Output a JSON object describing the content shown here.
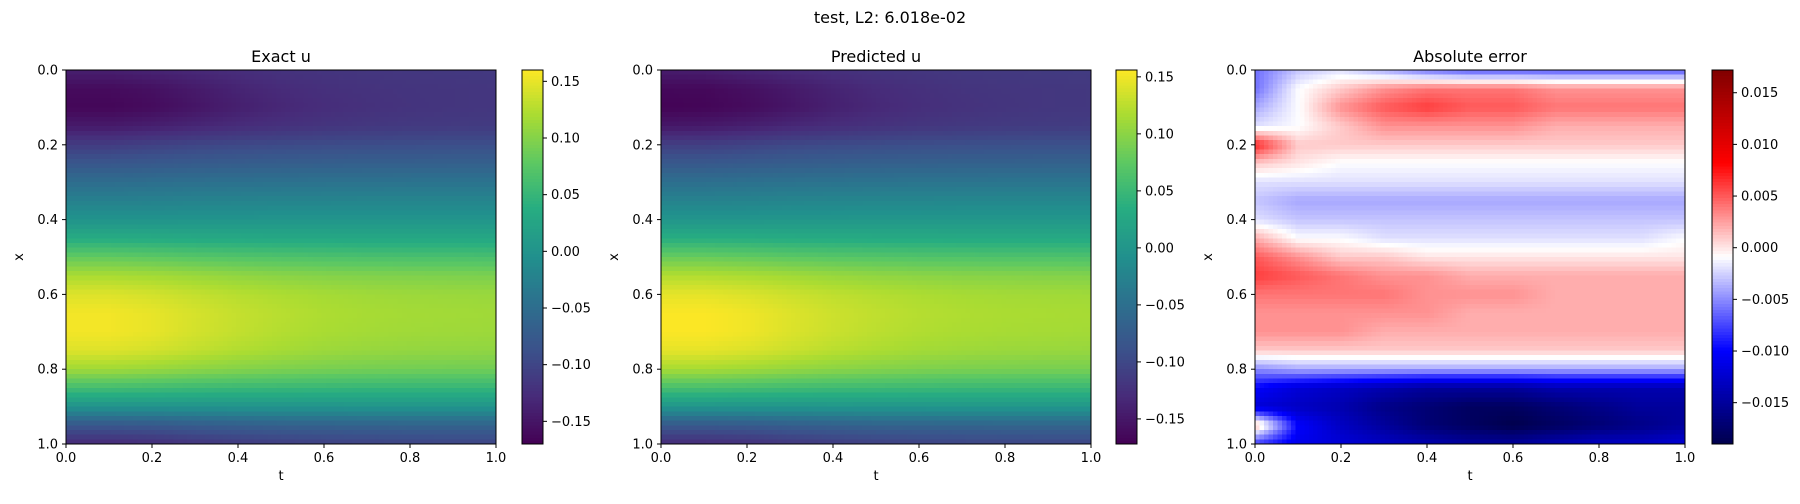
{
  "figure": {
    "suptitle": "test, L2: 6.018e-02"
  },
  "chart_data": [
    {
      "type": "heatmap",
      "title": "Exact u",
      "xlabel": "t",
      "ylabel": "x",
      "xlim": [
        0,
        1
      ],
      "ylim": [
        1,
        0
      ],
      "xticks": [
        "0.0",
        "0.2",
        "0.4",
        "0.6",
        "0.8",
        "1.0"
      ],
      "yticks": [
        "0.0",
        "0.2",
        "0.4",
        "0.6",
        "0.8",
        "1.0"
      ],
      "colormap": "viridis",
      "colorbar": {
        "range": [
          -0.17,
          0.16
        ],
        "ticks": [
          {
            "value": 0.15,
            "label": "0.15"
          },
          {
            "value": 0.1,
            "label": "0.10"
          },
          {
            "value": 0.05,
            "label": "0.05"
          },
          {
            "value": 0.0,
            "label": "0.00"
          },
          {
            "value": -0.05,
            "label": "−0.05"
          },
          {
            "value": -0.1,
            "label": "−0.10"
          },
          {
            "value": -0.15,
            "label": "−0.15"
          }
        ]
      },
      "x_values": [
        0.0,
        0.1,
        0.2,
        0.3,
        0.4,
        0.5,
        0.6,
        0.7,
        0.8,
        0.9,
        1.0
      ],
      "y_values": [
        0.0,
        0.05,
        0.1,
        0.15,
        0.2,
        0.25,
        0.3,
        0.35,
        0.4,
        0.45,
        0.5,
        0.55,
        0.6,
        0.65,
        0.7,
        0.75,
        0.8,
        0.85,
        0.9,
        0.95,
        1.0
      ],
      "z": [
        [
          -0.14,
          -0.14,
          -0.135,
          -0.13,
          -0.125,
          -0.12,
          -0.118,
          -0.116,
          -0.115,
          -0.114,
          -0.113
        ],
        [
          -0.16,
          -0.16,
          -0.155,
          -0.145,
          -0.135,
          -0.128,
          -0.123,
          -0.12,
          -0.118,
          -0.117,
          -0.116
        ],
        [
          -0.165,
          -0.165,
          -0.16,
          -0.15,
          -0.14,
          -0.132,
          -0.126,
          -0.122,
          -0.119,
          -0.117,
          -0.116
        ],
        [
          -0.145,
          -0.145,
          -0.14,
          -0.133,
          -0.127,
          -0.122,
          -0.118,
          -0.115,
          -0.113,
          -0.112,
          -0.111
        ],
        [
          -0.11,
          -0.11,
          -0.105,
          -0.1,
          -0.097,
          -0.095,
          -0.093,
          -0.092,
          -0.091,
          -0.09,
          -0.09
        ],
        [
          -0.08,
          -0.08,
          -0.077,
          -0.074,
          -0.072,
          -0.07,
          -0.069,
          -0.068,
          -0.068,
          -0.067,
          -0.067
        ],
        [
          -0.05,
          -0.05,
          -0.048,
          -0.046,
          -0.045,
          -0.044,
          -0.043,
          -0.043,
          -0.042,
          -0.042,
          -0.042
        ],
        [
          -0.025,
          -0.025,
          -0.024,
          -0.022,
          -0.021,
          -0.02,
          -0.02,
          -0.019,
          -0.019,
          -0.019,
          -0.019
        ],
        [
          0.0,
          0.0,
          0.0,
          0.001,
          0.001,
          0.002,
          0.002,
          0.002,
          0.002,
          0.002,
          0.002
        ],
        [
          0.035,
          0.035,
          0.034,
          0.032,
          0.031,
          0.03,
          0.03,
          0.029,
          0.029,
          0.029,
          0.029
        ],
        [
          0.08,
          0.08,
          0.077,
          0.073,
          0.07,
          0.068,
          0.066,
          0.065,
          0.064,
          0.064,
          0.063
        ],
        [
          0.12,
          0.12,
          0.117,
          0.112,
          0.107,
          0.103,
          0.1,
          0.098,
          0.097,
          0.096,
          0.095
        ],
        [
          0.145,
          0.145,
          0.14,
          0.133,
          0.127,
          0.122,
          0.118,
          0.115,
          0.113,
          0.112,
          0.111
        ],
        [
          0.155,
          0.155,
          0.15,
          0.141,
          0.133,
          0.127,
          0.122,
          0.119,
          0.117,
          0.116,
          0.115
        ],
        [
          0.155,
          0.155,
          0.15,
          0.14,
          0.132,
          0.125,
          0.12,
          0.117,
          0.115,
          0.114,
          0.113
        ],
        [
          0.145,
          0.145,
          0.14,
          0.132,
          0.124,
          0.118,
          0.113,
          0.11,
          0.108,
          0.107,
          0.106
        ],
        [
          0.115,
          0.115,
          0.111,
          0.105,
          0.1,
          0.096,
          0.093,
          0.091,
          0.09,
          0.089,
          0.089
        ],
        [
          0.06,
          0.06,
          0.058,
          0.055,
          0.053,
          0.052,
          0.051,
          0.05,
          0.05,
          0.05,
          0.05
        ],
        [
          0.0,
          0.0,
          0.0,
          0.0,
          0.001,
          0.001,
          0.001,
          0.002,
          0.002,
          0.002,
          0.002
        ],
        [
          -0.08,
          -0.08,
          -0.078,
          -0.073,
          -0.07,
          -0.067,
          -0.066,
          -0.065,
          -0.064,
          -0.064,
          -0.064
        ],
        [
          -0.13,
          -0.13,
          -0.126,
          -0.119,
          -0.113,
          -0.109,
          -0.106,
          -0.104,
          -0.103,
          -0.102,
          -0.102
        ]
      ]
    },
    {
      "type": "heatmap",
      "title": "Predicted u",
      "xlabel": "t",
      "ylabel": "x",
      "xlim": [
        0,
        1
      ],
      "ylim": [
        1,
        0
      ],
      "xticks": [
        "0.0",
        "0.2",
        "0.4",
        "0.6",
        "0.8",
        "1.0"
      ],
      "yticks": [
        "0.0",
        "0.2",
        "0.4",
        "0.6",
        "0.8",
        "1.0"
      ],
      "colormap": "viridis",
      "colorbar": {
        "range": [
          -0.172,
          0.156
        ],
        "ticks": [
          {
            "value": 0.15,
            "label": "0.15"
          },
          {
            "value": 0.1,
            "label": "0.10"
          },
          {
            "value": 0.05,
            "label": "0.05"
          },
          {
            "value": 0.0,
            "label": "0.00"
          },
          {
            "value": -0.05,
            "label": "−0.05"
          },
          {
            "value": -0.1,
            "label": "−0.10"
          },
          {
            "value": -0.15,
            "label": "−0.15"
          }
        ]
      },
      "x_values": [
        0.0,
        0.1,
        0.2,
        0.3,
        0.4,
        0.5,
        0.6,
        0.7,
        0.8,
        0.9,
        1.0
      ],
      "y_values": [
        0.0,
        0.05,
        0.1,
        0.15,
        0.2,
        0.25,
        0.3,
        0.35,
        0.4,
        0.45,
        0.5,
        0.55,
        0.6,
        0.65,
        0.7,
        0.75,
        0.8,
        0.85,
        0.9,
        0.95,
        1.0
      ],
      "z": [
        [
          -0.145,
          -0.143,
          -0.136,
          -0.13,
          -0.125,
          -0.12,
          -0.118,
          -0.116,
          -0.115,
          -0.114,
          -0.113
        ],
        [
          -0.165,
          -0.165,
          -0.158,
          -0.148,
          -0.138,
          -0.13,
          -0.125,
          -0.121,
          -0.119,
          -0.118,
          -0.117
        ],
        [
          -0.17,
          -0.168,
          -0.162,
          -0.152,
          -0.141,
          -0.133,
          -0.127,
          -0.123,
          -0.12,
          -0.118,
          -0.117
        ],
        [
          -0.15,
          -0.148,
          -0.142,
          -0.134,
          -0.128,
          -0.123,
          -0.119,
          -0.116,
          -0.114,
          -0.113,
          -0.112
        ],
        [
          -0.11,
          -0.11,
          -0.105,
          -0.1,
          -0.097,
          -0.095,
          -0.093,
          -0.092,
          -0.091,
          -0.09,
          -0.09
        ],
        [
          -0.08,
          -0.08,
          -0.077,
          -0.074,
          -0.072,
          -0.07,
          -0.069,
          -0.068,
          -0.068,
          -0.067,
          -0.067
        ],
        [
          -0.05,
          -0.05,
          -0.048,
          -0.046,
          -0.045,
          -0.044,
          -0.043,
          -0.043,
          -0.042,
          -0.042,
          -0.042
        ],
        [
          -0.025,
          -0.025,
          -0.024,
          -0.022,
          -0.021,
          -0.02,
          -0.02,
          -0.019,
          -0.019,
          -0.019,
          -0.019
        ],
        [
          0.0,
          0.0,
          0.0,
          0.001,
          0.001,
          0.002,
          0.002,
          0.002,
          0.002,
          0.002,
          0.002
        ],
        [
          0.035,
          0.035,
          0.034,
          0.032,
          0.031,
          0.03,
          0.03,
          0.029,
          0.029,
          0.029,
          0.029
        ],
        [
          0.08,
          0.08,
          0.077,
          0.073,
          0.07,
          0.068,
          0.066,
          0.065,
          0.064,
          0.064,
          0.063
        ],
        [
          0.12,
          0.12,
          0.117,
          0.112,
          0.107,
          0.103,
          0.1,
          0.098,
          0.097,
          0.096,
          0.095
        ],
        [
          0.145,
          0.145,
          0.14,
          0.133,
          0.127,
          0.122,
          0.118,
          0.115,
          0.113,
          0.112,
          0.111
        ],
        [
          0.155,
          0.155,
          0.15,
          0.141,
          0.133,
          0.127,
          0.122,
          0.119,
          0.117,
          0.116,
          0.115
        ],
        [
          0.155,
          0.155,
          0.15,
          0.14,
          0.132,
          0.125,
          0.12,
          0.117,
          0.115,
          0.114,
          0.113
        ],
        [
          0.145,
          0.145,
          0.14,
          0.132,
          0.124,
          0.118,
          0.113,
          0.11,
          0.108,
          0.107,
          0.106
        ],
        [
          0.115,
          0.115,
          0.111,
          0.105,
          0.1,
          0.096,
          0.093,
          0.091,
          0.09,
          0.089,
          0.089
        ],
        [
          0.06,
          0.06,
          0.058,
          0.055,
          0.053,
          0.052,
          0.051,
          0.05,
          0.05,
          0.05,
          0.05
        ],
        [
          0.0,
          0.0,
          0.0,
          0.0,
          0.001,
          0.001,
          0.001,
          0.002,
          0.002,
          0.002,
          0.002
        ],
        [
          -0.08,
          -0.08,
          -0.078,
          -0.073,
          -0.07,
          -0.067,
          -0.066,
          -0.065,
          -0.064,
          -0.064,
          -0.064
        ],
        [
          -0.13,
          -0.13,
          -0.126,
          -0.119,
          -0.113,
          -0.109,
          -0.106,
          -0.104,
          -0.103,
          -0.102,
          -0.102
        ]
      ]
    },
    {
      "type": "heatmap",
      "title": "Absolute error",
      "xlabel": "t",
      "ylabel": "x",
      "xlim": [
        0,
        1
      ],
      "ylim": [
        1,
        0
      ],
      "xticks": [
        "0.0",
        "0.2",
        "0.4",
        "0.6",
        "0.8",
        "1.0"
      ],
      "yticks": [
        "0.0",
        "0.2",
        "0.4",
        "0.6",
        "0.8",
        "1.0"
      ],
      "colormap": "seismic",
      "colorbar": {
        "range": [
          -0.019,
          0.0172
        ],
        "ticks": [
          {
            "value": 0.015,
            "label": "0.015"
          },
          {
            "value": 0.01,
            "label": "0.010"
          },
          {
            "value": 0.005,
            "label": "0.005"
          },
          {
            "value": 0.0,
            "label": "0.000"
          },
          {
            "value": -0.005,
            "label": "−0.005"
          },
          {
            "value": -0.01,
            "label": "−0.010"
          },
          {
            "value": -0.015,
            "label": "−0.015"
          }
        ]
      },
      "x_values": [
        0.0,
        0.1,
        0.2,
        0.3,
        0.4,
        0.5,
        0.6,
        0.7,
        0.8,
        0.9,
        1.0
      ],
      "y_values": [
        0.0,
        0.05,
        0.1,
        0.15,
        0.2,
        0.25,
        0.3,
        0.35,
        0.4,
        0.45,
        0.5,
        0.55,
        0.6,
        0.65,
        0.7,
        0.75,
        0.8,
        0.85,
        0.9,
        0.95,
        1.0
      ],
      "z": [
        [
          -0.006,
          -0.003,
          -0.002,
          -0.004,
          -0.006,
          -0.007,
          -0.007,
          -0.007,
          -0.007,
          -0.007,
          -0.007
        ],
        [
          -0.006,
          -0.001,
          0.001,
          0.003,
          0.004,
          0.004,
          0.004,
          0.003,
          0.003,
          0.003,
          0.003
        ],
        [
          -0.004,
          -0.001,
          0.003,
          0.005,
          0.006,
          0.005,
          0.005,
          0.004,
          0.004,
          0.004,
          0.004
        ],
        [
          -0.002,
          -0.001,
          0.001,
          0.003,
          0.003,
          0.003,
          0.003,
          0.002,
          0.002,
          0.002,
          0.002
        ],
        [
          0.007,
          0.001,
          0.001,
          0.001,
          0.001,
          0.001,
          0.001,
          0.001,
          0.001,
          0.001,
          0.001
        ],
        [
          0.001,
          0.0,
          -0.001,
          -0.001,
          -0.001,
          -0.001,
          -0.001,
          -0.001,
          -0.001,
          -0.001,
          -0.001
        ],
        [
          -0.002,
          -0.002,
          -0.002,
          -0.002,
          -0.002,
          -0.002,
          -0.002,
          -0.002,
          -0.002,
          -0.002,
          -0.002
        ],
        [
          -0.003,
          -0.004,
          -0.004,
          -0.004,
          -0.004,
          -0.004,
          -0.004,
          -0.004,
          -0.004,
          -0.004,
          -0.004
        ],
        [
          -0.002,
          -0.003,
          -0.003,
          -0.003,
          -0.003,
          -0.003,
          -0.003,
          -0.003,
          -0.003,
          -0.003,
          -0.003
        ],
        [
          0.002,
          -0.001,
          -0.001,
          -0.002,
          -0.002,
          -0.002,
          -0.002,
          -0.002,
          -0.002,
          -0.002,
          -0.001
        ],
        [
          0.005,
          0.003,
          0.001,
          0.001,
          0.0,
          0.0,
          0.0,
          0.0,
          0.0,
          0.0,
          0.0
        ],
        [
          0.006,
          0.005,
          0.004,
          0.003,
          0.003,
          0.002,
          0.002,
          0.002,
          0.002,
          0.002,
          0.002
        ],
        [
          0.004,
          0.004,
          0.004,
          0.004,
          0.003,
          0.003,
          0.003,
          0.002,
          0.002,
          0.002,
          0.002
        ],
        [
          0.003,
          0.003,
          0.003,
          0.003,
          0.003,
          0.002,
          0.002,
          0.002,
          0.002,
          0.002,
          0.002
        ],
        [
          0.003,
          0.003,
          0.003,
          0.002,
          0.002,
          0.002,
          0.002,
          0.002,
          0.002,
          0.002,
          0.002
        ],
        [
          0.001,
          0.001,
          0.001,
          0.001,
          0.001,
          0.001,
          0.001,
          0.001,
          0.001,
          0.001,
          0.001
        ],
        [
          -0.005,
          -0.004,
          -0.004,
          -0.004,
          -0.004,
          -0.004,
          -0.004,
          -0.004,
          -0.004,
          -0.004,
          -0.004
        ],
        [
          -0.01,
          -0.012,
          -0.013,
          -0.014,
          -0.015,
          -0.015,
          -0.015,
          -0.014,
          -0.014,
          -0.014,
          -0.014
        ],
        [
          -0.012,
          -0.013,
          -0.014,
          -0.016,
          -0.017,
          -0.018,
          -0.018,
          -0.017,
          -0.016,
          -0.015,
          -0.015
        ],
        [
          0.002,
          -0.01,
          -0.013,
          -0.015,
          -0.017,
          -0.018,
          -0.019,
          -0.018,
          -0.017,
          -0.016,
          -0.015
        ],
        [
          -0.008,
          -0.011,
          -0.012,
          -0.013,
          -0.014,
          -0.015,
          -0.015,
          -0.014,
          -0.013,
          -0.013,
          -0.012
        ]
      ]
    }
  ]
}
